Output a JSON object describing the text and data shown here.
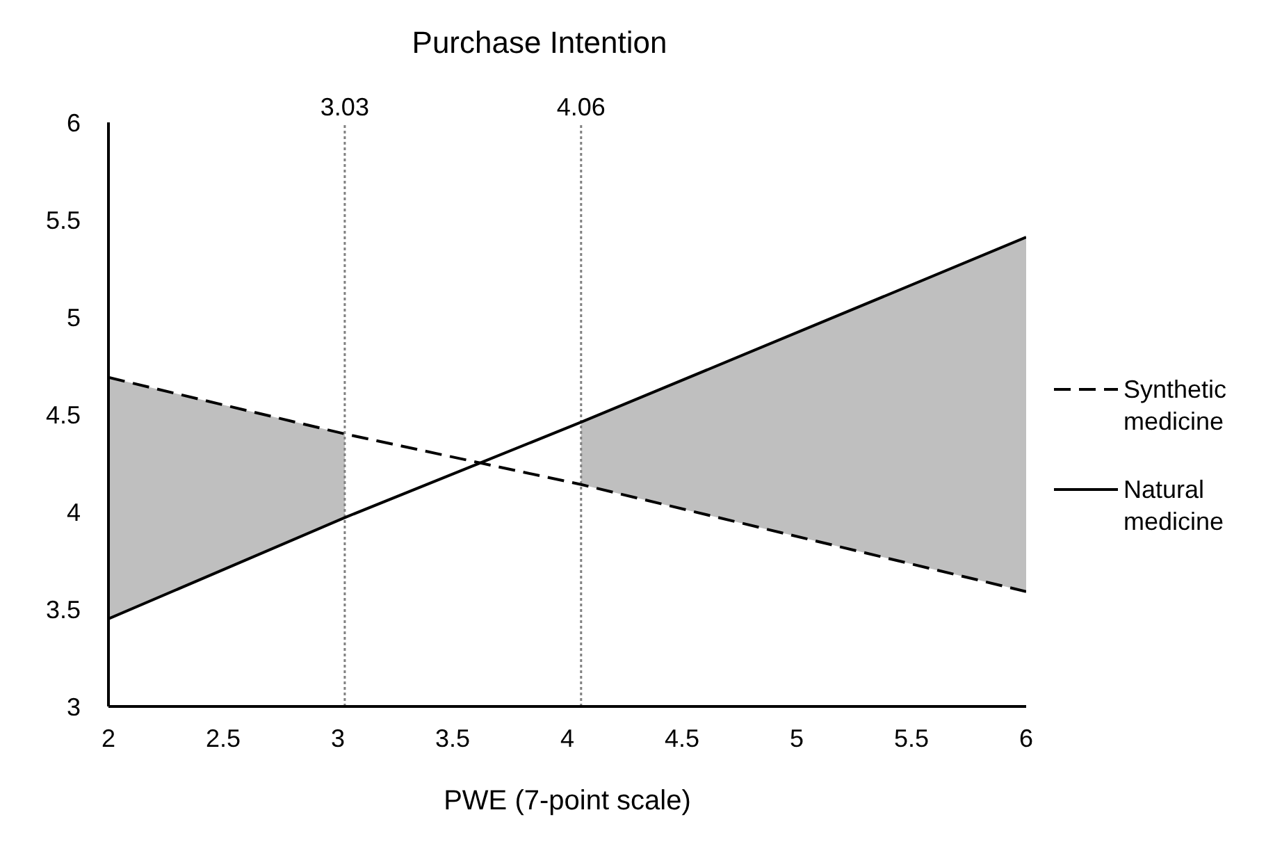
{
  "chart_data": {
    "type": "line",
    "title": "Purchase Intention",
    "xlabel": "PWE (7-point scale)",
    "xlim": [
      2,
      6
    ],
    "xticks": [
      2,
      2.5,
      3,
      3.5,
      4,
      4.5,
      5,
      5.5,
      6
    ],
    "ylim": [
      3,
      6
    ],
    "yticks": [
      3,
      3.5,
      4,
      4.5,
      5,
      5.5,
      6
    ],
    "grid": false,
    "legend": "right",
    "marker": "none",
    "series": [
      {
        "name": "Synthetic medicine",
        "color": "#000000",
        "line_style": "dashed",
        "x": [
          2,
          3.03,
          4.06,
          6
        ],
        "values": [
          4.69,
          4.4,
          4.14,
          3.59
        ]
      },
      {
        "name": "Natural medicine",
        "color": "#000000",
        "line_style": "solid",
        "x": [
          2,
          3.03,
          3.64,
          4.06,
          6
        ],
        "values": [
          3.45,
          3.97,
          4.26,
          4.46,
          5.41
        ],
        "lower": [
          3.45,
          3.97,
          null,
          4.14,
          3.59
        ],
        "upper": [
          4.69,
          4.4,
          null,
          4.46,
          5.41
        ]
      }
    ],
    "ref_lines": [
      {
        "axis": "x",
        "value": 3.03,
        "label": "3.03",
        "color": "#808080",
        "line_style": "dotted"
      },
      {
        "axis": "x",
        "value": 4.06,
        "label": "4.06",
        "color": "#808080",
        "line_style": "dotted"
      }
    ]
  }
}
